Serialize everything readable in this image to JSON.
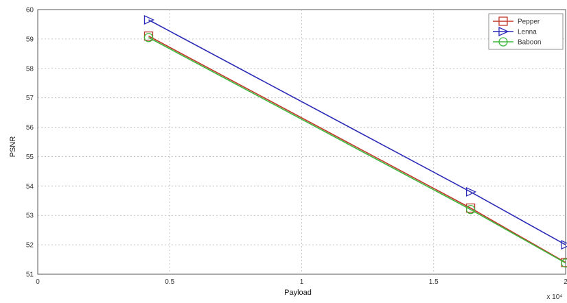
{
  "chart_data": {
    "type": "line",
    "xlabel": "Payload",
    "ylabel": "PSNR",
    "x_multiplier": "x 10⁴",
    "xlim": [
      0,
      2
    ],
    "ylim": [
      51,
      60
    ],
    "xticks": [
      "0",
      "0.5",
      "1",
      "1.5",
      "2"
    ],
    "yticks": [
      "51",
      "52",
      "53",
      "54",
      "55",
      "56",
      "57",
      "58",
      "59",
      "60"
    ],
    "grid": true,
    "legend_position": "top-right",
    "series": [
      {
        "name": "Pepper",
        "color": "#c0392b",
        "marker": "square",
        "x": [
          0.42,
          1.64,
          2.0
        ],
        "y": [
          59.1,
          53.25,
          51.4
        ]
      },
      {
        "name": "Lenna",
        "color": "#2c2cb8",
        "marker": "triangle",
        "x": [
          0.42,
          1.64,
          2.0
        ],
        "y": [
          59.65,
          53.8,
          52.0
        ]
      },
      {
        "name": "Baboon",
        "color": "#3cb83c",
        "marker": "circle",
        "x": [
          0.42,
          1.64,
          2.0
        ],
        "y": [
          59.05,
          53.2,
          51.38
        ]
      }
    ]
  }
}
